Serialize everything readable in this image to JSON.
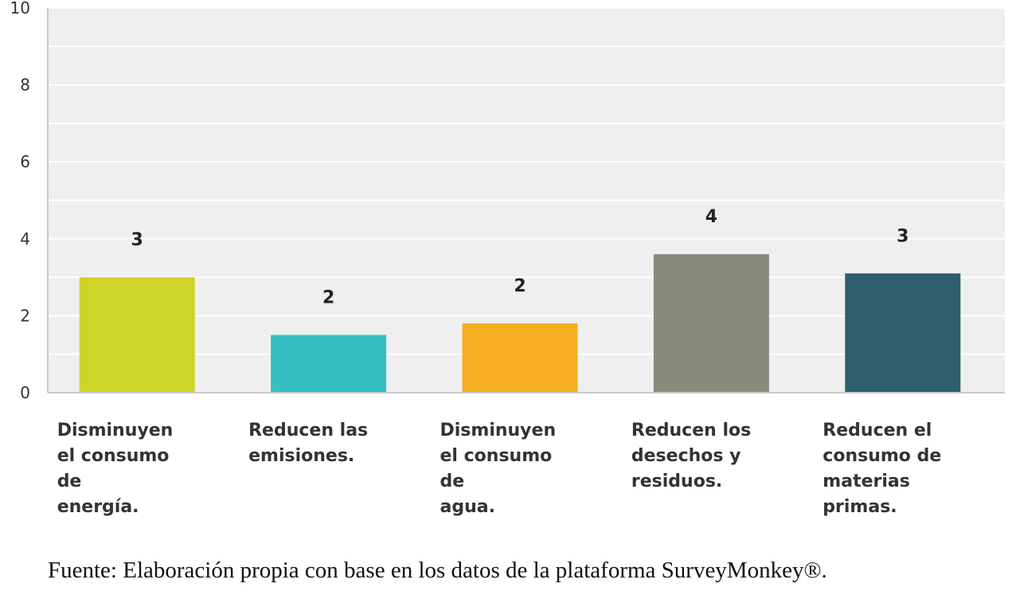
{
  "chart_data": {
    "type": "bar",
    "categories": [
      [
        "Disminuyen",
        "el consumo",
        "de",
        "energía."
      ],
      [
        "Reducen las",
        "emisiones."
      ],
      [
        "Disminuyen",
        "el consumo",
        "de",
        "agua."
      ],
      [
        "Reducen los",
        "desechos y",
        "residuos."
      ],
      [
        "Reducen el",
        "consumo de",
        "materias",
        "primas."
      ]
    ],
    "values": [
      3.0,
      1.5,
      1.8,
      3.6,
      3.1
    ],
    "data_labels": [
      "3",
      "2",
      "2",
      "4",
      "3"
    ],
    "colors": [
      "#cfd428",
      "#34bfc1",
      "#f5ae1f",
      "#898b7a",
      "#2e5f6e"
    ],
    "ylim": [
      0,
      10
    ],
    "yticks": [
      "0",
      "2",
      "4",
      "6",
      "8",
      "10"
    ],
    "grid": true
  },
  "source": "Fuente: Elaboración propia con base en los datos de la plataforma SurveyMonkey®."
}
